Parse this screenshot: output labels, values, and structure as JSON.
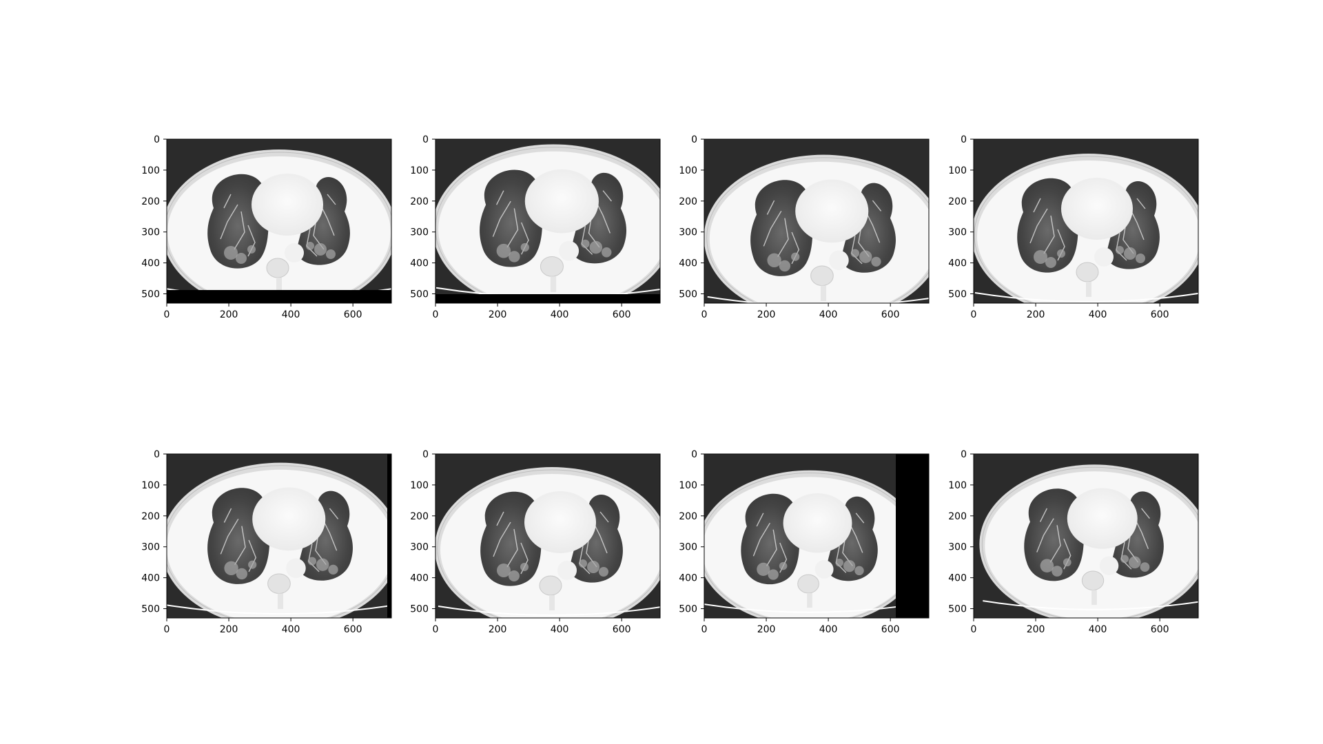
{
  "figure": {
    "panels": [
      {
        "id": 1,
        "xticks": [
          "0",
          "200",
          "400",
          "600"
        ],
        "yticks": [
          "0",
          "100",
          "200",
          "300",
          "400",
          "500"
        ],
        "image": "axial chest CT slice, lung window, black band along bottom"
      },
      {
        "id": 2,
        "xticks": [
          "0",
          "200",
          "400",
          "600"
        ],
        "yticks": [
          "0",
          "100",
          "200",
          "300",
          "400",
          "500"
        ],
        "image": "axial chest CT slice, lung window, black band along bottom"
      },
      {
        "id": 3,
        "xticks": [
          "0",
          "200",
          "400",
          "600"
        ],
        "yticks": [
          "0",
          "100",
          "200",
          "300",
          "400",
          "500"
        ],
        "image": "axial chest CT slice, lung window"
      },
      {
        "id": 4,
        "xticks": [
          "0",
          "200",
          "400",
          "600"
        ],
        "yticks": [
          "0",
          "100",
          "200",
          "300",
          "400",
          "500"
        ],
        "image": "axial chest CT slice, lung window"
      },
      {
        "id": 5,
        "xticks": [
          "0",
          "200",
          "400",
          "600"
        ],
        "yticks": [
          "0",
          "100",
          "200",
          "300",
          "400",
          "500"
        ],
        "image": "axial chest CT slice, lung window"
      },
      {
        "id": 6,
        "xticks": [
          "0",
          "200",
          "400",
          "600"
        ],
        "yticks": [
          "0",
          "100",
          "200",
          "300",
          "400",
          "500"
        ],
        "image": "axial chest CT slice, lung window"
      },
      {
        "id": 7,
        "xticks": [
          "0",
          "200",
          "400",
          "600"
        ],
        "yticks": [
          "0",
          "100",
          "200",
          "300",
          "400",
          "500"
        ],
        "image": "axial chest CT slice, lung window, black block on right side"
      },
      {
        "id": 8,
        "xticks": [
          "0",
          "200",
          "400",
          "600"
        ],
        "yticks": [
          "0",
          "100",
          "200",
          "300",
          "400",
          "500"
        ],
        "image": "axial chest CT slice, lung window"
      }
    ],
    "colors": {
      "background": "#ffffff",
      "ct_air": "#2b2b2b",
      "ct_tissue": "#ececec",
      "ct_soft": "#f7f7f7",
      "ct_lung": "#4a4a4a",
      "ct_black": "#000000"
    }
  }
}
